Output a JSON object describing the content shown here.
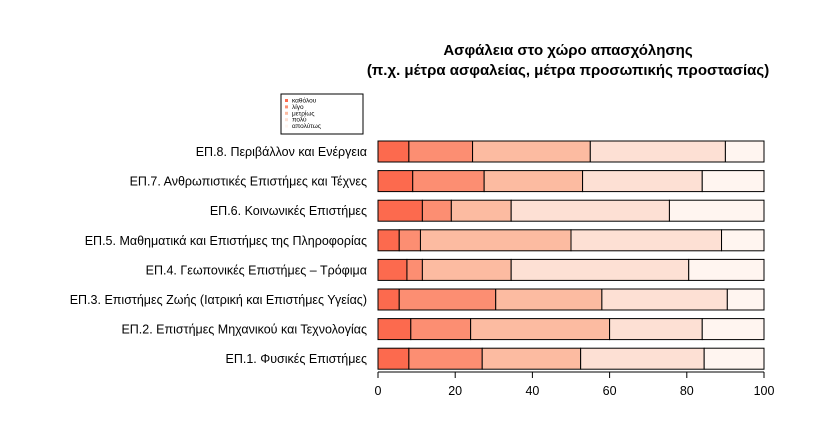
{
  "chart_data": {
    "type": "bar",
    "orientation": "horizontal",
    "stacked": true,
    "title": "Ασφάλεια στο χώρο απασχόλησης",
    "subtitle": "(π.χ. μέτρα ασφαλείας, μέτρα προσωπικής προστασίας)",
    "xlabel": "",
    "ylabel": "",
    "xlim": [
      0,
      100
    ],
    "xticks": [
      "0",
      "20",
      "40",
      "60",
      "80",
      "100"
    ],
    "legend_position": "top-left",
    "categories": [
      "ΕΠ.8. Περιβάλλον και Ενέργεια",
      "ΕΠ.7. Ανθρωπιστικές Επιστήμες και Τέχνες",
      "ΕΠ.6. Κοινωνικές Επιστήμες",
      "ΕΠ.5. Μαθηματικά και Επιστήμες της Πληροφορίας",
      "ΕΠ.4. Γεωπονικές Επιστήμες – Τρόφιμα",
      "ΕΠ.3. Επιστήμες Ζωής (Ιατρική και Επιστήμες Υγείας)",
      "ΕΠ.2. Επιστήμες Μηχανικού και Τεχνολογίας",
      "ΕΠ.1. Φυσικές Επιστήμες"
    ],
    "series": [
      {
        "name": "καθόλου",
        "color": "#fc6a4e",
        "values": [
          8,
          9,
          11.5,
          5.5,
          7.5,
          5.5,
          8.5,
          8
        ]
      },
      {
        "name": "λίγο",
        "color": "#fc8e72",
        "values": [
          16.5,
          18.5,
          7.5,
          5.5,
          4,
          25,
          15.5,
          19
        ]
      },
      {
        "name": "μετρίως",
        "color": "#fcbba1",
        "values": [
          30.5,
          25.5,
          15.5,
          39,
          23,
          27.5,
          36,
          25.5
        ]
      },
      {
        "name": "πολύ",
        "color": "#fde0d4",
        "values": [
          35,
          31,
          41,
          39,
          46,
          32.5,
          24,
          32
        ]
      },
      {
        "name": "απολύτως",
        "color": "#fff5f0",
        "values": [
          10,
          16,
          24.5,
          11,
          19.5,
          9.5,
          16,
          15.5
        ]
      }
    ]
  }
}
